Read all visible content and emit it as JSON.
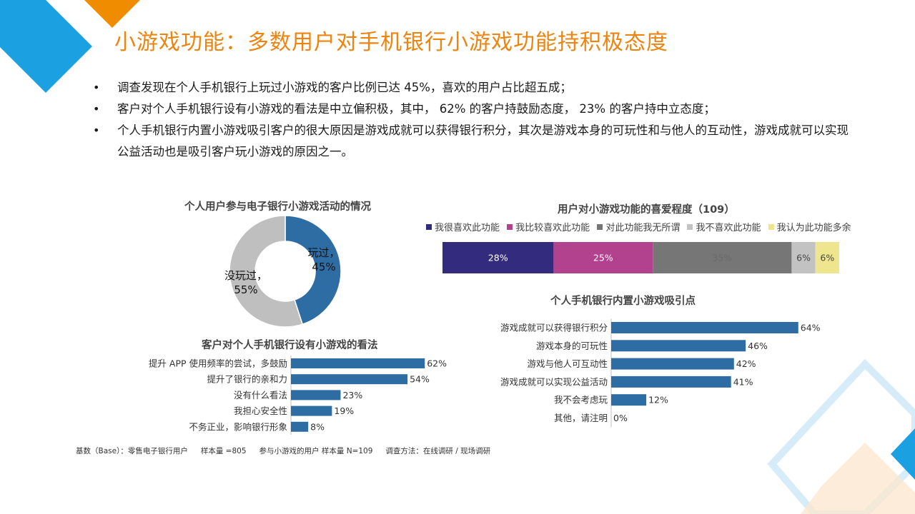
{
  "title": "小游戏功能：多数用户对手机银行小游戏功能持积极态度",
  "bullets": [
    "调查发现在个人手机银行上玩过小游戏的客户比例已达 45%，喜欢的用户占比超五成；",
    "客户对个人手机银行设有小游戏的看法是中立偏积极，其中， 62% 的客户持鼓励态度， 23% 的客户持中立态度；",
    "个人手机银行内置小游戏吸引客户的很大原因是游戏成就可以获得银行积分，其次是游戏本身的可玩性和与他人的互动性，游戏成就可以实现公益活动也是吸引客户玩小游戏的原因之一。"
  ],
  "colors": {
    "accent": "#ee8410",
    "blue": "#2e6da4",
    "grey": "#bfbfbf"
  },
  "footnote": {
    "base": "基数（Base）：零售电子银行用户",
    "sample1": "样本量 =805",
    "sample2": "参与小游戏的用户 样本量 N=109",
    "method": "调查方法：在线调研 / 现场调研"
  },
  "chart_data": [
    {
      "id": "participation",
      "type": "pie",
      "title": "个人用户参与电子银行小游戏活动的情况",
      "slices": [
        {
          "label": "玩过",
          "value": 45,
          "color": "#2e6da4",
          "label_text": "玩过，",
          "value_text": "45%"
        },
        {
          "label": "没玩过",
          "value": 55,
          "color": "#bfbfbf",
          "label_text": "没玩过，",
          "value_text": "55%"
        }
      ]
    },
    {
      "id": "attitude",
      "type": "bar",
      "orientation": "horizontal",
      "title": "客户对个人手机银行设有小游戏的看法",
      "categories": [
        "提升 APP 使用频率的尝试，多鼓励",
        "提升了银行的亲和力",
        "没有什么看法",
        "我担心安全性",
        "不务正业，影响银行形象"
      ],
      "values": [
        62,
        54,
        23,
        19,
        8
      ],
      "labels": [
        "62%",
        "54%",
        "23%",
        "19%",
        "8%"
      ],
      "xlim": [
        0,
        100
      ],
      "color": "#2e6da4"
    },
    {
      "id": "preference",
      "type": "bar",
      "orientation": "horizontal",
      "stacked": true,
      "title": "用户对小游戏功能的喜爱程度（109）",
      "series": [
        {
          "name": "我很喜欢此功能",
          "value": 28,
          "label": "28%",
          "color": "#332c7e"
        },
        {
          "name": "我比较喜欢此功能",
          "value": 25,
          "label": "25%",
          "color": "#b2418e"
        },
        {
          "name": "对此功能我无所谓",
          "value": 35,
          "label": "35%",
          "color": "#767676"
        },
        {
          "name": "我不喜欢此功能",
          "value": 6,
          "label": "6%",
          "color": "#c2c2c2"
        },
        {
          "name": "我认为此功能多余",
          "value": 6,
          "label": "6%",
          "color": "#f0e58f"
        }
      ],
      "legend_position": "top"
    },
    {
      "id": "attraction",
      "type": "bar",
      "orientation": "horizontal",
      "title": "个人手机银行内置小游戏吸引点",
      "categories": [
        "游戏成就可以获得银行积分",
        "游戏本身的可玩性",
        "游戏与他人可互动性",
        "游戏成就可以实现公益活动",
        "我不会考虑玩",
        "其他，请注明"
      ],
      "values": [
        64,
        46,
        42,
        41,
        12,
        0
      ],
      "labels": [
        "64%",
        "46%",
        "42%",
        "41%",
        "12%",
        "0%"
      ],
      "xlim": [
        0,
        100
      ],
      "color": "#2e6da4"
    }
  ]
}
